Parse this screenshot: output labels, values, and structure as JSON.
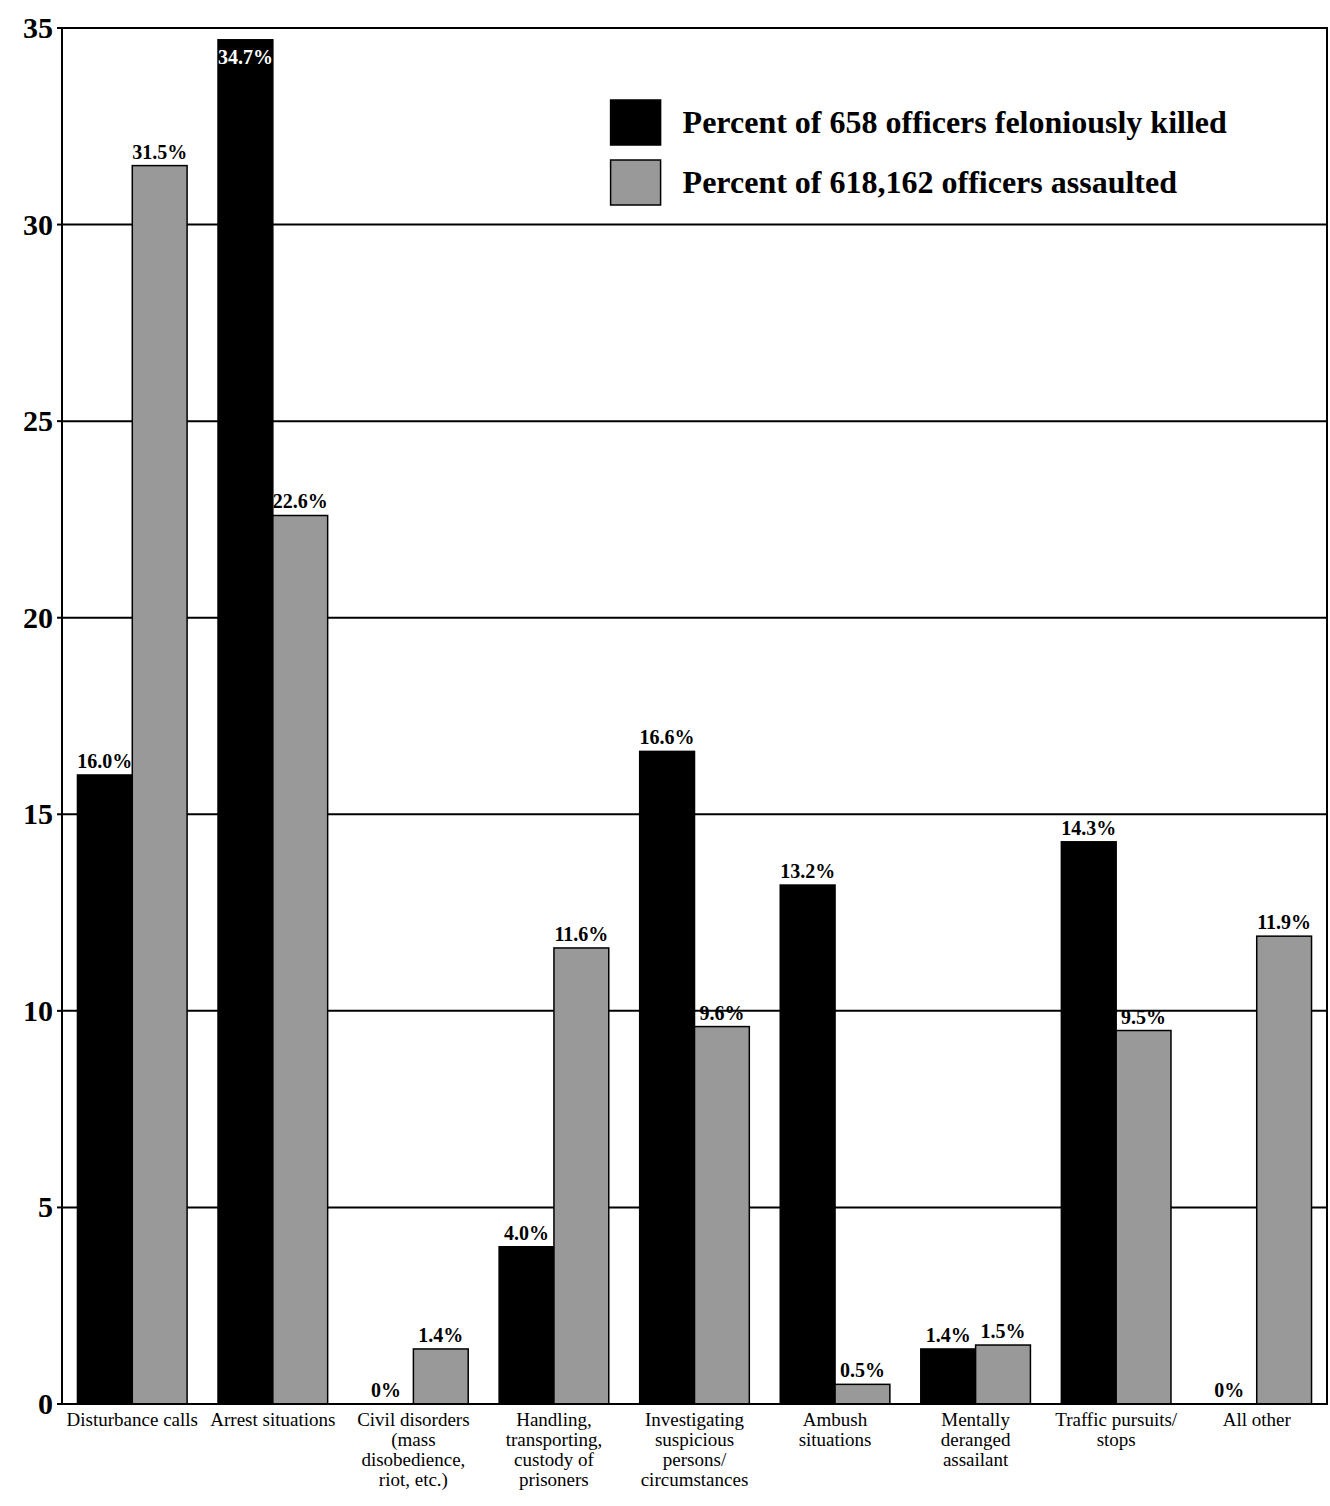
{
  "chart_data": {
    "type": "bar",
    "categories": [
      "Disturbance calls",
      "Arrest situations",
      "Civil disorders (mass disobedience, riot, etc.)",
      "Handling, transporting, custody of prisoners",
      "Investigating suspicious persons/ circumstances",
      "Ambush situations",
      "Mentally deranged assailant",
      "Traffic pursuits/ stops",
      "All other"
    ],
    "series": [
      {
        "name": "Percent of 658 officers feloniously killed",
        "color": "#000000",
        "values": [
          16.0,
          34.7,
          0,
          4.0,
          16.6,
          13.2,
          1.4,
          14.3,
          0
        ],
        "value_labels": [
          "16.0%",
          "34.7%",
          "0%",
          "4.0%",
          "16.6%",
          "13.2%",
          "1.4%",
          "14.3%",
          "0%"
        ]
      },
      {
        "name": "Percent of 618,162 officers assaulted",
        "color": "#999999",
        "values": [
          31.5,
          22.6,
          1.4,
          11.6,
          9.6,
          0.5,
          1.5,
          9.5,
          11.9
        ],
        "value_labels": [
          "31.5%",
          "22.6%",
          "1.4%",
          "11.6%",
          "9.6%",
          "0.5%",
          "1.5%",
          "9.5%",
          "11.9%"
        ]
      }
    ],
    "ylim": [
      0,
      35
    ],
    "yticks": [
      0,
      5,
      10,
      15,
      20,
      25,
      30,
      35
    ],
    "grid": true,
    "legend": "upper right",
    "data_labels": true
  }
}
